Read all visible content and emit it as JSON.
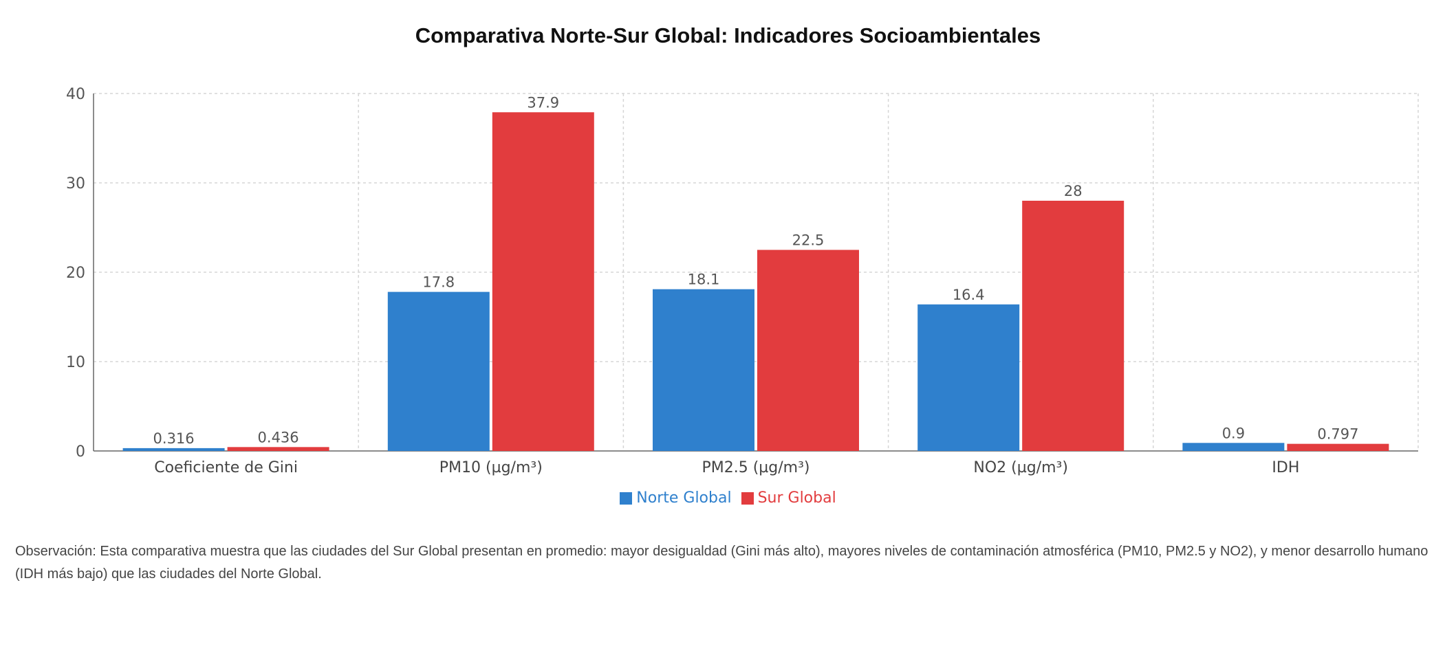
{
  "chart_data": {
    "type": "bar",
    "title": "Comparativa Norte-Sur Global: Indicadores Socioambientales",
    "categories": [
      "Coeficiente de Gini",
      "PM10 (µg/m³)",
      "PM2.5 (µg/m³)",
      "NO2 (µg/m³)",
      "IDH"
    ],
    "series": [
      {
        "name": "Norte Global",
        "color": "#2f80cd",
        "values": [
          0.316,
          17.8,
          18.1,
          16.4,
          0.9
        ],
        "labels": [
          "0.316",
          "17.8",
          "18.1",
          "16.4",
          "0.9"
        ]
      },
      {
        "name": "Sur Global",
        "color": "#e23c3e",
        "values": [
          0.436,
          37.9,
          22.5,
          28,
          0.797
        ],
        "labels": [
          "0.436",
          "37.9",
          "22.5",
          "28",
          "0.797"
        ]
      }
    ],
    "ylim": [
      0,
      40
    ],
    "yticks": [
      0,
      10,
      20,
      30,
      40
    ],
    "grid": true,
    "legend_position": "bottom-center"
  },
  "observation": "Observación: Esta comparativa muestra que las ciudades del Sur Global presentan en promedio: mayor desigualdad (Gini más alto), mayores niveles de contaminación atmosférica (PM10, PM2.5 y NO2), y menor desarrollo humano (IDH más bajo) que las ciudades del Norte Global."
}
